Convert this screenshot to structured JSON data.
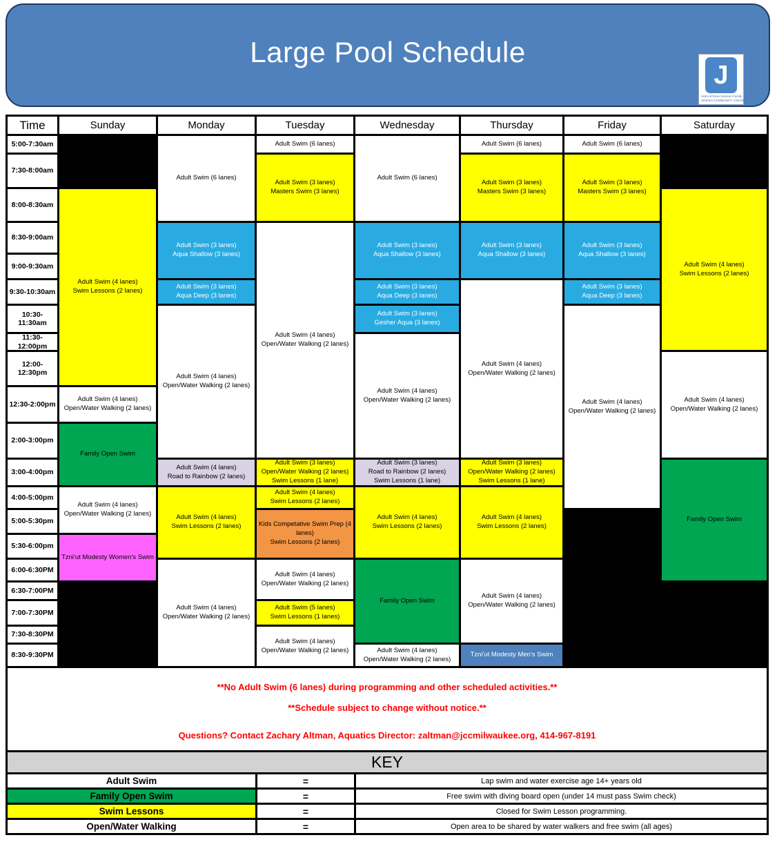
{
  "title": "Large Pool Schedule",
  "logo": {
    "letter": "J",
    "line1": "Harry & Rose Samson Family",
    "line2": "JEWISH COMMUNITY CENTER"
  },
  "colors": {
    "white": "#FFFFFF",
    "black": "#000000",
    "yellow": "#FFFF00",
    "blue": "#29ABE2",
    "green": "#00A651",
    "pink": "#FF63FF",
    "orange": "#F29544",
    "lavender": "#D8D2E4",
    "steel": "#4E81BD",
    "banner": "#4F81BD",
    "key_header_bg": "#D2D2D2",
    "note_red": "#FF0000"
  },
  "schedule": {
    "day_headers": [
      "Time",
      "Sunday",
      "Monday",
      "Tuesday",
      "Wednesday",
      "Thursday",
      "Friday",
      "Saturday"
    ],
    "time_slots": [
      "5:00-7:30am",
      "7:30-8:00am",
      "8:00-8:30am",
      "8:30-9:00am",
      "9:00-9:30am",
      "9:30-10:30am",
      "10:30-\n11:30am",
      "11:30-\n12:00pm",
      "12:00-\n12:30pm",
      "12:30-2:00pm",
      "2:00-3:00pm",
      "3:00-4:00pm",
      "4:00-5:00pm",
      "5:00-5:30pm",
      "5:30-6:00pm",
      "6:00-6:30PM",
      "6:30-7:00PM",
      "7:00-7:30PM",
      "7:30-8:30PM",
      "8:30-9:30PM"
    ],
    "columns": [
      {
        "day": "Sunday",
        "blocks": [
          {
            "row": 1,
            "span": 2,
            "color": "black",
            "text": ""
          },
          {
            "row": 3,
            "span": 7,
            "color": "yellow",
            "text": "Adult Swim (4 lanes)\nSwim Lessons (2 lanes)"
          },
          {
            "row": 10,
            "span": 1,
            "color": "white",
            "text": "Adult Swim (4 lanes)\nOpen/Water Walking (2 lanes)"
          },
          {
            "row": 11,
            "span": 2,
            "color": "green",
            "text": "Family Open Swim"
          },
          {
            "row": 13,
            "span": 2,
            "color": "white",
            "text": "Adult Swim (4 lanes)\nOpen/Water Walking (2 lanes)"
          },
          {
            "row": 15,
            "span": 2,
            "color": "pink",
            "text": "Tzni'ut Modesty Women's Swim"
          },
          {
            "row": 17,
            "span": 4,
            "color": "black",
            "text": ""
          }
        ]
      },
      {
        "day": "Monday",
        "blocks": [
          {
            "row": 1,
            "span": 3,
            "color": "white",
            "text": "Adult Swim (6 lanes)"
          },
          {
            "row": 4,
            "span": 2,
            "color": "blue",
            "text": "Adult Swim (3 lanes)\nAqua Shallow (3 lanes)"
          },
          {
            "row": 6,
            "span": 1,
            "color": "blue",
            "text": "Adult Swim (3 lanes)\nAqua Deep (3 lanes)"
          },
          {
            "row": 7,
            "span": 5,
            "color": "white",
            "text": "Adult Swim (4 lanes)\nOpen/Water Walking (2 lanes)"
          },
          {
            "row": 12,
            "span": 1,
            "color": "lavender",
            "text": "Adult Swim (4 lanes)\nRoad to Rainbow (2 lanes)"
          },
          {
            "row": 13,
            "span": 3,
            "color": "yellow",
            "text": "Adult Swim (4 lanes)\nSwim Lessons (2 lanes)"
          },
          {
            "row": 16,
            "span": 5,
            "color": "white",
            "text": "Adult Swim (4 lanes)\nOpen/Water Walking (2 lanes)"
          }
        ]
      },
      {
        "day": "Tuesday",
        "blocks": [
          {
            "row": 1,
            "span": 1,
            "color": "white",
            "text": "Adult Swim (6 lanes)"
          },
          {
            "row": 2,
            "span": 2,
            "color": "yellow",
            "text": "Adult Swim (3 lanes)\nMasters Swim (3 lanes)"
          },
          {
            "row": 4,
            "span": 8,
            "color": "white",
            "text": "Adult Swim (4 lanes)\nOpen/Water Walking (2 lanes)"
          },
          {
            "row": 12,
            "span": 1,
            "color": "yellow",
            "text": "Adult Swim (3 lanes)\nOpen/Water Walking (2 lanes)\nSwim Lessons (1 lane)"
          },
          {
            "row": 13,
            "span": 1,
            "color": "yellow",
            "text": "Adult Swim (4 lanes)\nSwim Lessons (2 lanes)"
          },
          {
            "row": 14,
            "span": 2,
            "color": "orange",
            "text": "Kids Competative Swim Prep (4 lanes)\nSwim Lessons (2 lanes)"
          },
          {
            "row": 16,
            "span": 2,
            "color": "white",
            "text": "Adult Swim (4 lanes)\nOpen/Water Walking (2 lanes)"
          },
          {
            "row": 18,
            "span": 1,
            "color": "yellow",
            "text": "Adult Swim (5 lanes)\nSwim Lessons (1 lanes)"
          },
          {
            "row": 19,
            "span": 2,
            "color": "white",
            "text": "Adult Swim (4 lanes)\nOpen/Water Walking (2 lanes)"
          }
        ]
      },
      {
        "day": "Wednesday",
        "blocks": [
          {
            "row": 1,
            "span": 3,
            "color": "white",
            "text": "Adult Swim (6 lanes)"
          },
          {
            "row": 4,
            "span": 2,
            "color": "blue",
            "text": "Adult Swim (3 lanes)\nAqua Shallow (3 lanes)"
          },
          {
            "row": 6,
            "span": 1,
            "color": "blue",
            "text": "Adult Swim (3 lanes)\nAqua Deep (3 lanes)"
          },
          {
            "row": 7,
            "span": 1,
            "color": "blue",
            "text": "Adult Swim (3 lanes)\nGesher Aqua (3 lanes)"
          },
          {
            "row": 8,
            "span": 4,
            "color": "white",
            "text": "Adult Swim (4 lanes)\nOpen/Water Walking (2 lanes)"
          },
          {
            "row": 12,
            "span": 1,
            "color": "lavender",
            "text": "Adult Swim (3 lanes)\nRoad  to Rainbow (2 lanes)\nSwim Lessons (1 lane)"
          },
          {
            "row": 13,
            "span": 3,
            "color": "yellow",
            "text": "Adult Swim (4 lanes)\nSwim Lessons (2 lanes)"
          },
          {
            "row": 16,
            "span": 4,
            "color": "green",
            "text": "Family Open Swim"
          },
          {
            "row": 20,
            "span": 1,
            "color": "white",
            "text": "Adult Swim (4 lanes)\nOpen/Water Walking (2 lanes)"
          }
        ]
      },
      {
        "day": "Thursday",
        "blocks": [
          {
            "row": 1,
            "span": 1,
            "color": "white",
            "text": "Adult Swim (6 lanes)"
          },
          {
            "row": 2,
            "span": 2,
            "color": "yellow",
            "text": "Adult Swim (3 lanes)\nMasters Swim (3 lanes)"
          },
          {
            "row": 4,
            "span": 2,
            "color": "blue",
            "text": "Adult Swim (3 lanes)\nAqua Shallow (3 lanes)"
          },
          {
            "row": 6,
            "span": 6,
            "color": "white",
            "text": "Adult Swim (4 lanes)\nOpen/Water Walking (2 lanes)"
          },
          {
            "row": 12,
            "span": 1,
            "color": "yellow",
            "text": "Adult Swim (3 lanes)\nOpen/Water Walking (2 lanes)\nSwim Lessons (1 lane)"
          },
          {
            "row": 13,
            "span": 3,
            "color": "yellow",
            "text": "Adult Swim (4 lanes)\nSwim Lessons (2 lanes)"
          },
          {
            "row": 16,
            "span": 4,
            "color": "white",
            "text": "Adult Swim (4 lanes)\nOpen/Water Walking (2 lanes)"
          },
          {
            "row": 20,
            "span": 1,
            "color": "steel",
            "text": "Tzni'ut Modesty Men's Swim"
          }
        ]
      },
      {
        "day": "Friday",
        "blocks": [
          {
            "row": 1,
            "span": 1,
            "color": "white",
            "text": "Adult Swim (6 lanes)"
          },
          {
            "row": 2,
            "span": 2,
            "color": "yellow",
            "text": "Adult Swim (3 lanes)\nMasters Swim (3 lanes)"
          },
          {
            "row": 4,
            "span": 2,
            "color": "blue",
            "text": "Adult Swim (3 lanes)\nAqua Shallow (3 lanes)"
          },
          {
            "row": 6,
            "span": 1,
            "color": "blue",
            "text": "Adult Swim (3 lanes)\nAqua Deep (3 lanes)"
          },
          {
            "row": 7,
            "span": 7,
            "color": "white",
            "text": "Adult Swim (4 lanes)\nOpen/Water Walking (2 lanes)"
          },
          {
            "row": 14,
            "span": 7,
            "color": "black",
            "text": ""
          }
        ]
      },
      {
        "day": "Saturday",
        "blocks": [
          {
            "row": 1,
            "span": 2,
            "color": "black",
            "text": ""
          },
          {
            "row": 3,
            "span": 6,
            "color": "yellow",
            "text": "Adult Swim (4 lanes)\nSwim Lessons (2 lanes)"
          },
          {
            "row": 9,
            "span": 3,
            "color": "white",
            "text": "Adult Swim (4 lanes)\nOpen/Water Walking (2 lanes)"
          },
          {
            "row": 12,
            "span": 5,
            "color": "green",
            "text": "Family Open Swim"
          },
          {
            "row": 17,
            "span": 4,
            "color": "black",
            "text": ""
          }
        ]
      }
    ]
  },
  "notes": [
    "**No Adult Swim (6 lanes) during programming and other scheduled activities.**",
    "**Schedule subject to change without notice.**",
    "Questions? Contact Zachary Altman, Aquatics Director: zaltman@jccmilwaukee.org, 414-967-8191"
  ],
  "key": {
    "title": "KEY",
    "equals": "=",
    "rows": [
      {
        "label": "Adult Swim",
        "color": "white",
        "description": "Lap swim and water exercise age 14+ years old"
      },
      {
        "label": "Family Open Swim",
        "color": "green",
        "description": "Free swim with diving board open (under 14 must pass Swim check)"
      },
      {
        "label": "Swim Lessons",
        "color": "yellow",
        "description": "Closed for Swim Lesson programming."
      },
      {
        "label": "Open/Water Walking",
        "color": "white",
        "description": "Open area to be shared by water walkers and free swim (all ages)"
      }
    ]
  }
}
